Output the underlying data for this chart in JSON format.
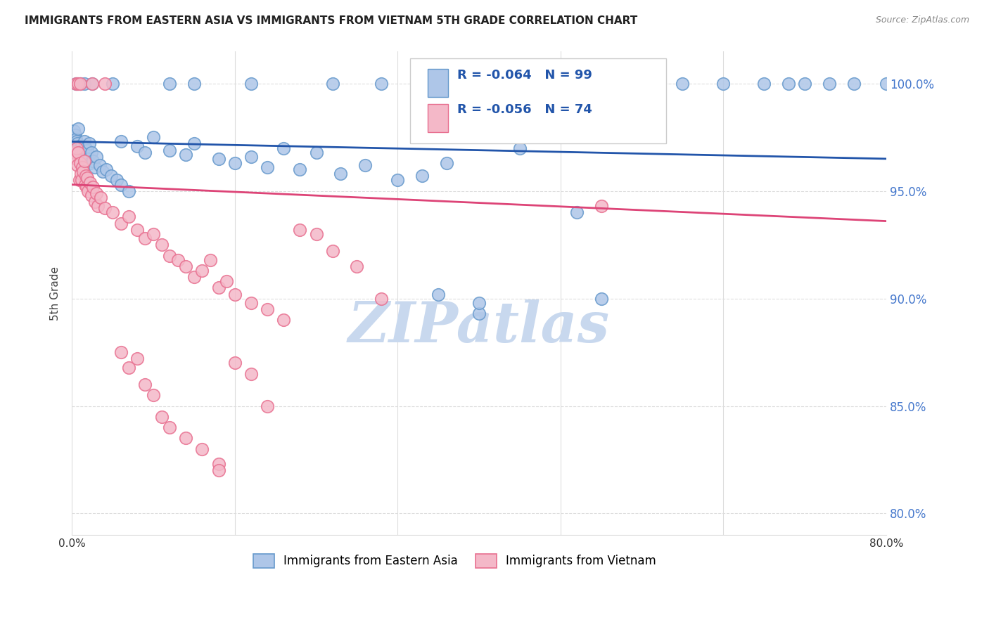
{
  "title": "IMMIGRANTS FROM EASTERN ASIA VS IMMIGRANTS FROM VIETNAM 5TH GRADE CORRELATION CHART",
  "source": "Source: ZipAtlas.com",
  "ylabel": "5th Grade",
  "legend_r1": "-0.064",
  "legend_n1": "99",
  "legend_r2": "-0.056",
  "legend_n2": "74",
  "blue_color": "#aec6e8",
  "blue_edge_color": "#6699cc",
  "pink_color": "#f4b8c8",
  "pink_edge_color": "#e87090",
  "blue_line_color": "#2255aa",
  "pink_line_color": "#dd4477",
  "watermark": "ZIPatlas",
  "blue_trend_x0": 0.0,
  "blue_trend_x1": 1.0,
  "blue_trend_y0": 97.3,
  "blue_trend_y1": 96.5,
  "pink_trend_x0": 0.0,
  "pink_trend_x1": 1.0,
  "pink_trend_y0": 95.3,
  "pink_trend_y1": 93.6,
  "xlim": [
    0.0,
    1.0
  ],
  "ylim": [
    79.0,
    101.5
  ],
  "y_ticks": [
    80.0,
    85.0,
    90.0,
    95.0,
    100.0
  ],
  "background_color": "#ffffff",
  "grid_color": "#dddddd",
  "title_color": "#222222",
  "watermark_color": "#c8d8ee",
  "right_axis_color": "#4477cc",
  "legend_box_color": "#eeeeee",
  "legend_text_color": "#2255aa"
}
